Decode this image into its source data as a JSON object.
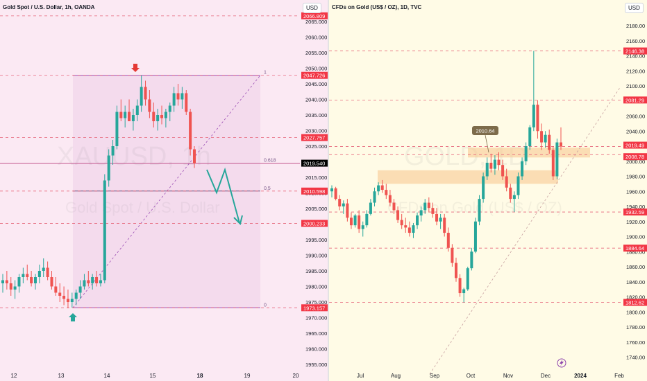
{
  "left": {
    "title": "Gold Spot / U.S. Dollar, 1h, OANDA",
    "currency": "USD",
    "watermark_symbol": "XAUUSD, 1h",
    "watermark_name": "Gold Spot / U.S. Dollar",
    "y_ticks": [
      "2065.000",
      "2060.000",
      "2055.000",
      "2050.000",
      "2045.000",
      "2040.000",
      "2035.000",
      "2030.000",
      "2025.000",
      "2020.000",
      "2015.000",
      "2010.000",
      "2005.000",
      "2000.000",
      "1995.000",
      "1990.000",
      "1985.000",
      "1980.000",
      "1975.000",
      "1970.000",
      "1965.000",
      "1960.000",
      "1955.000"
    ],
    "x_ticks": [
      "12",
      "13",
      "14",
      "15",
      "18",
      "19",
      "20"
    ],
    "price_labels": [
      {
        "text": "2066.809",
        "value": 2066.809,
        "color": "#f23645"
      },
      {
        "text": "2047.726",
        "value": 2047.726,
        "color": "#f23645"
      },
      {
        "text": "2027.757",
        "value": 2027.757,
        "color": "#f23645"
      },
      {
        "text": "2019.540",
        "value": 2019.54,
        "color": "#000000"
      },
      {
        "text": "2010.598",
        "value": 2010.598,
        "color": "#f23645"
      },
      {
        "text": "2000.233",
        "value": 2000.233,
        "color": "#f23645"
      },
      {
        "text": "1973.157",
        "value": 1973.157,
        "color": "#f23645"
      }
    ],
    "fib_labels": [
      "1",
      "0.618",
      "0.5",
      "0"
    ],
    "colors": {
      "up": "#26a69a",
      "down": "#ef5350",
      "fib_fill": "#9c27b0",
      "arrow_down": "#e53935",
      "arrow_up": "#26a69a",
      "projection": "#26a69a"
    }
  },
  "right": {
    "title": "CFDs on Gold (US$ / OZ), 1D, TVC",
    "currency": "USD",
    "watermark_symbol": "GOLD, 1D",
    "watermark_name": "CFDs on Gold (US$ / OZ)",
    "y_ticks": [
      "2180.00",
      "2160.00",
      "2140.00",
      "2120.00",
      "2100.00",
      "2080.00",
      "2060.00",
      "2040.00",
      "2020.00",
      "2000.00",
      "1980.00",
      "1960.00",
      "1940.00",
      "1920.00",
      "1900.00",
      "1880.00",
      "1860.00",
      "1840.00",
      "1820.00",
      "1800.00",
      "1780.00",
      "1760.00",
      "1740.00"
    ],
    "x_ticks": [
      "Jul",
      "Aug",
      "Sep",
      "Oct",
      "Nov",
      "Dec",
      "2024",
      "Feb"
    ],
    "price_labels": [
      {
        "text": "2146.38",
        "value": 2146.38,
        "color": "#f23645"
      },
      {
        "text": "2081.29",
        "value": 2081.29,
        "color": "#f23645"
      },
      {
        "text": "2019.49",
        "value": 2019.49,
        "color": "#f23645"
      },
      {
        "text": "2008.78",
        "value": 2008.78,
        "color": "#f23645"
      },
      {
        "text": "1932.59",
        "value": 1932.59,
        "color": "#f23645"
      },
      {
        "text": "1884.64",
        "value": 1884.64,
        "color": "#f23645"
      },
      {
        "text": "1812.62",
        "value": 1812.62,
        "color": "#f23645"
      }
    ],
    "callout": "2010.64",
    "colors": {
      "up": "#26a69a",
      "down": "#ef5350",
      "zone": "#f8c48a"
    }
  },
  "chart_data": [
    {
      "type": "candlestick",
      "title": "Gold Spot / U.S. Dollar, 1h, OANDA",
      "ylim": [
        1952,
        2070
      ],
      "x_ticks": [
        "12",
        "13",
        "14",
        "15",
        "18",
        "19",
        "20"
      ],
      "levels": [
        2066.809,
        2047.726,
        2027.757,
        2019.54,
        2010.598,
        2000.233,
        1973.157
      ],
      "fibonacci": {
        "high": 2047.726,
        "low": 1973.157,
        "levels": [
          1,
          0.618,
          0.5,
          0
        ]
      },
      "series": [
        {
          "values": [
            [
              1981,
              1984,
              1978,
              1982
            ],
            [
              1982,
              1985,
              1979,
              1981
            ],
            [
              1981,
              1983,
              1977,
              1979
            ],
            [
              1979,
              1982,
              1976,
              1980
            ],
            [
              1980,
              1984,
              1978,
              1983
            ],
            [
              1983,
              1986,
              1981,
              1984
            ],
            [
              1984,
              1987,
              1982,
              1983
            ],
            [
              1983,
              1985,
              1980,
              1981
            ],
            [
              1981,
              1984,
              1979,
              1983
            ],
            [
              1983,
              1987,
              1981,
              1985
            ],
            [
              1985,
              1989,
              1983,
              1986
            ],
            [
              1986,
              1988,
              1982,
              1983
            ],
            [
              1983,
              1985,
              1979,
              1980
            ],
            [
              1980,
              1983,
              1977,
              1978
            ],
            [
              1978,
              1981,
              1975,
              1977
            ],
            [
              1977,
              1980,
              1974,
              1976
            ],
            [
              1976,
              1979,
              1973,
              1975
            ],
            [
              1975,
              1978,
              1973.2,
              1976
            ],
            [
              1976,
              1979,
              1974,
              1978
            ],
            [
              1978,
              1982,
              1976,
              1980
            ],
            [
              1980,
              1984,
              1979,
              1982
            ],
            [
              1982,
              1985,
              1980,
              1981
            ],
            [
              1981,
              1984,
              1979,
              1983
            ],
            [
              1983,
              1985,
              1980,
              1981
            ],
            [
              1981,
              1984,
              1980,
              1982
            ],
            [
              1982,
              2016,
              1981,
              2014
            ],
            [
              2014,
              2024,
              2012,
              2022
            ],
            [
              2022,
              2027,
              2019,
              2025
            ],
            [
              2025,
              2038,
              2024,
              2036
            ],
            [
              2036,
              2040,
              2033,
              2034
            ],
            [
              2034,
              2038,
              2031,
              2036
            ],
            [
              2036,
              2040,
              2034,
              2033
            ],
            [
              2033,
              2037,
              2030,
              2035
            ],
            [
              2035,
              2040,
              2033,
              2038
            ],
            [
              2038,
              2047.7,
              2036,
              2044
            ],
            [
              2044,
              2046,
              2038,
              2040
            ],
            [
              2040,
              2043,
              2034,
              2036
            ],
            [
              2036,
              2039,
              2031,
              2033
            ],
            [
              2033,
              2037,
              2030,
              2035
            ],
            [
              2035,
              2038,
              2032,
              2034
            ],
            [
              2034,
              2037,
              2031,
              2036
            ],
            [
              2036,
              2039,
              2033,
              2038
            ],
            [
              2038,
              2044,
              2036,
              2042
            ],
            [
              2042,
              2045,
              2038,
              2040
            ],
            [
              2040,
              2044,
              2037,
              2042
            ],
            [
              2042,
              2043,
              2035,
              2036
            ],
            [
              2036,
              2037,
              2022,
              2024
            ],
            [
              2024,
              2025,
              2018,
              2019.5
            ]
          ]
        }
      ]
    },
    {
      "type": "candlestick",
      "title": "CFDs on Gold (US$ / OZ), 1D, TVC",
      "ylim": [
        1734,
        2188
      ],
      "x_ticks": [
        "Jul",
        "Aug",
        "Sep",
        "Oct",
        "Nov",
        "Dec",
        "2024",
        "Feb"
      ],
      "levels": [
        2146.38,
        2081.29,
        2019.49,
        2008.78,
        1932.59,
        1884.64,
        1812.62
      ],
      "zones": [
        [
          1970,
          1988
        ],
        [
          2005,
          2018
        ]
      ],
      "callout": "2010.64",
      "series": [
        {
          "values": [
            [
              1960,
              1968,
              1952,
              1964
            ],
            [
              1964,
              1966,
              1948,
              1950
            ],
            [
              1950,
              1955,
              1935,
              1940
            ],
            [
              1940,
              1948,
              1930,
              1944
            ],
            [
              1944,
              1950,
              1920,
              1925
            ],
            [
              1925,
              1932,
              1910,
              1915
            ],
            [
              1915,
              1930,
              1912,
              1928
            ],
            [
              1928,
              1935,
              1905,
              1910
            ],
            [
              1910,
              1920,
              1900,
              1915
            ],
            [
              1915,
              1935,
              1912,
              1930
            ],
            [
              1930,
              1950,
              1928,
              1945
            ],
            [
              1945,
              1965,
              1940,
              1960
            ],
            [
              1960,
              1972,
              1955,
              1968
            ],
            [
              1968,
              1975,
              1958,
              1962
            ],
            [
              1962,
              1970,
              1950,
              1955
            ],
            [
              1955,
              1962,
              1940,
              1945
            ],
            [
              1945,
              1950,
              1930,
              1935
            ],
            [
              1935,
              1940,
              1918,
              1922
            ],
            [
              1922,
              1930,
              1910,
              1915
            ],
            [
              1915,
              1925,
              1905,
              1912
            ],
            [
              1912,
              1920,
              1900,
              1905
            ],
            [
              1905,
              1918,
              1898,
              1915
            ],
            [
              1915,
              1932,
              1910,
              1928
            ],
            [
              1928,
              1940,
              1920,
              1935
            ],
            [
              1935,
              1950,
              1930,
              1945
            ],
            [
              1945,
              1952,
              1932,
              1938
            ],
            [
              1938,
              1945,
              1925,
              1930
            ],
            [
              1930,
              1938,
              1915,
              1920
            ],
            [
              1920,
              1930,
              1910,
              1925
            ],
            [
              1925,
              1930,
              1900,
              1905
            ],
            [
              1905,
              1912,
              1880,
              1885
            ],
            [
              1885,
              1890,
              1860,
              1865
            ],
            [
              1865,
              1872,
              1840,
              1845
            ],
            [
              1845,
              1850,
              1820,
              1825
            ],
            [
              1825,
              1832,
              1812.6,
              1830
            ],
            [
              1830,
              1860,
              1828,
              1858
            ],
            [
              1858,
              1885,
              1855,
              1880
            ],
            [
              1880,
              1925,
              1878,
              1920
            ],
            [
              1920,
              1955,
              1915,
              1950
            ],
            [
              1950,
              1985,
              1945,
              1980
            ],
            [
              1980,
              2005,
              1975,
              1998
            ],
            [
              1998,
              2010,
              1985,
              1990
            ],
            [
              1990,
              2008,
              1982,
              2002
            ],
            [
              2002,
              2012,
              1988,
              1995
            ],
            [
              1995,
              2002,
              1975,
              1980
            ],
            [
              1980,
              1990,
              1960,
              1965
            ],
            [
              1965,
              1970,
              1945,
              1950
            ],
            [
              1950,
              1960,
              1932.6,
              1955
            ],
            [
              1955,
              1985,
              1950,
              1980
            ],
            [
              1980,
              2005,
              1975,
              2000
            ],
            [
              2000,
              2025,
              1995,
              2020
            ],
            [
              2020,
              2048,
              2015,
              2045
            ],
            [
              2045,
              2146.4,
              2040,
              2075
            ],
            [
              2075,
              2081,
              2030,
              2040
            ],
            [
              2040,
              2050,
              2015,
              2025
            ],
            [
              2025,
              2040,
              2018,
              2035
            ],
            [
              2035,
              2042,
              2010,
              2015
            ],
            [
              2015,
              2020,
              1975,
              1980
            ],
            [
              1980,
              2030,
              1976,
              2025
            ],
            [
              2025,
              2045,
              2015,
              2019.5
            ]
          ]
        }
      ]
    }
  ]
}
